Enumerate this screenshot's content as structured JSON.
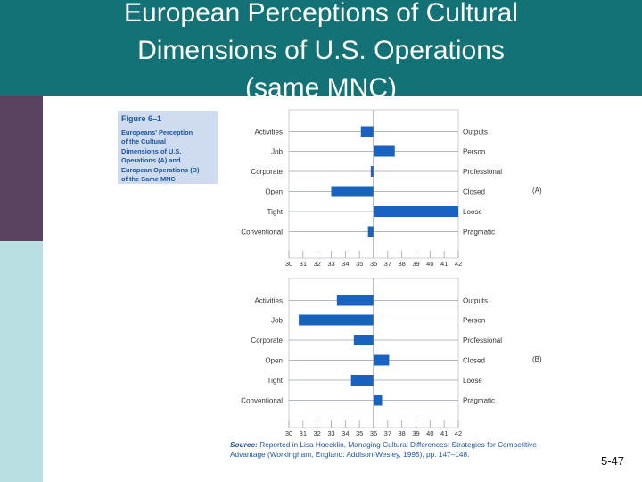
{
  "slide": {
    "title_lines": [
      "European Perceptions of Cultural",
      "Dimensions of U.S. Operations",
      "(same MNC)"
    ],
    "figure_label": "Figure 6–1",
    "figure_desc_lines": [
      "Europeans' Perception",
      "of the Cultural",
      "Dimensions of U.S.",
      "Operations (A) and",
      "European Operations (B)",
      "of the Same MNC"
    ],
    "source_lead": "Source:",
    "source_text": "Reported in Lisa Hoecklin, Managing Cultural Differences: Strategies for Competitive Advantage (Workingham, England: Addison-Wesley, 1995), pp. 147–148.",
    "slide_number": "5-47",
    "colors": {
      "header": "#127276",
      "bar": "#1a62bf",
      "sidebar_dark": "#5a4360",
      "sidebar_light": "#b9dfe2"
    }
  },
  "chart_data": [
    {
      "type": "bar",
      "orientation": "horizontal",
      "panel_label": "(A)",
      "left_labels": [
        "Activities",
        "Job",
        "Corporate",
        "Open",
        "Tight",
        "Conventional"
      ],
      "right_labels": [
        "Outputs",
        "Person",
        "Professional",
        "Closed",
        "Loose",
        "Pragmatic"
      ],
      "baseline": 36,
      "values": [
        35.1,
        37.5,
        35.8,
        33.0,
        42.0,
        35.6
      ],
      "xlim": [
        30,
        42
      ],
      "xticks": [
        30,
        31,
        32,
        33,
        34,
        35,
        36,
        37,
        38,
        39,
        40,
        41,
        42
      ],
      "grid": true
    },
    {
      "type": "bar",
      "orientation": "horizontal",
      "panel_label": "(B)",
      "left_labels": [
        "Activities",
        "Job",
        "Corporate",
        "Open",
        "Tight",
        "Conventional"
      ],
      "right_labels": [
        "Outputs",
        "Person",
        "Professional",
        "Closed",
        "Loose",
        "Pragmatic"
      ],
      "baseline": 36,
      "values": [
        33.4,
        30.7,
        34.6,
        37.1,
        34.4,
        36.6
      ],
      "xlim": [
        30,
        42
      ],
      "xticks": [
        30,
        31,
        32,
        33,
        34,
        35,
        36,
        37,
        38,
        39,
        40,
        41,
        42
      ],
      "grid": true
    }
  ]
}
